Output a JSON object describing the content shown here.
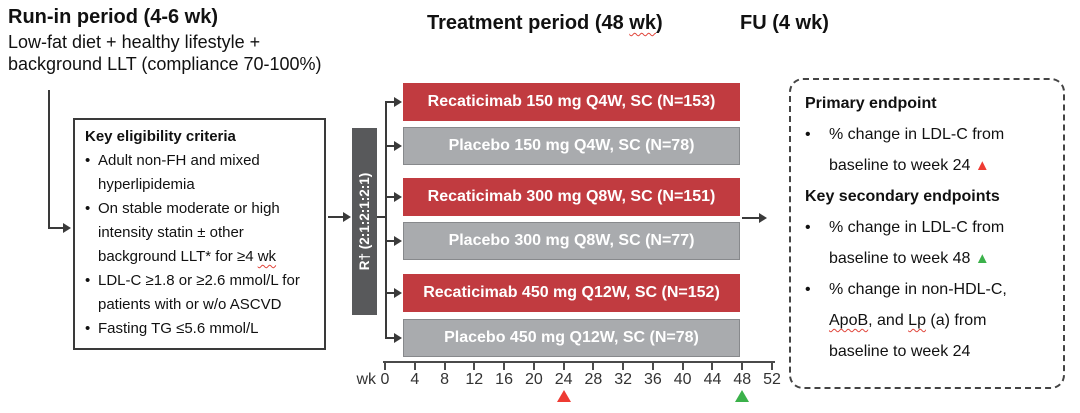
{
  "colors": {
    "active_bar": "#C13B40",
    "placebo_bar": "#A9ABAE",
    "randomization_bar": "#58595B",
    "marker_red": "#EE3B33",
    "marker_green": "#3BB14A"
  },
  "headers": {
    "runin_title": "Run-in period (4-6 wk)",
    "runin_sub1": "Low-fat diet + healthy lifestyle +",
    "runin_sub2": "background LLT (compliance 70-100%)",
    "treatment_title": [
      {
        "t": "Treatment period (48 "
      },
      {
        "t": "wk",
        "c": "sq"
      },
      {
        "t": ")"
      }
    ],
    "fu_title": "FU (4 wk)"
  },
  "eligibility": {
    "title": "Key eligibility criteria",
    "items": [
      [
        {
          "t": "Adult non-FH and mixed hyperlipidemia"
        }
      ],
      [
        {
          "t": "On stable moderate or high intensity statin ± other background LLT* for ≥4 "
        },
        {
          "t": "wk",
          "c": "sq"
        }
      ],
      [
        {
          "t": "LDL-C ≥1.8 or ≥2.6 mmol/L for patients with or w/o ASCVD"
        }
      ],
      [
        {
          "t": "Fasting TG ≤5.6 mmol/L"
        }
      ]
    ]
  },
  "randomization": {
    "label": "R† (2:1:2:1:2:1)"
  },
  "arms": [
    {
      "label": "Recaticimab 150 mg Q4W, SC (N=153)",
      "type": "active"
    },
    {
      "label": "Placebo 150 mg Q4W, SC (N=78)",
      "type": "placebo"
    },
    {
      "label": "Recaticimab 300 mg Q8W, SC (N=151)",
      "type": "active"
    },
    {
      "label": "Placebo 300 mg Q8W, SC (N=77)",
      "type": "placebo"
    },
    {
      "label": "Recaticimab 450 mg Q12W, SC (N=152)",
      "type": "active"
    },
    {
      "label": "Placebo 450 mg Q12W, SC (N=78)",
      "type": "placebo"
    }
  ],
  "axis": {
    "unit_label": "wk",
    "ticks": [
      "0",
      "4",
      "8",
      "12",
      "16",
      "20",
      "24",
      "28",
      "32",
      "36",
      "40",
      "44",
      "48",
      "52"
    ],
    "markers": [
      {
        "at": "24",
        "color": "red"
      },
      {
        "at": "48",
        "color": "green"
      }
    ]
  },
  "endpoints": {
    "primary_title": "Primary endpoint",
    "primary_items": [
      [
        {
          "t": "% change in LDL-C from baseline to week 24 "
        },
        {
          "t": "▲",
          "c": "tri-red"
        }
      ]
    ],
    "secondary_title": "Key secondary endpoints",
    "secondary_items": [
      [
        {
          "t": "% change in LDL-C from baseline to week 48 "
        },
        {
          "t": "▲",
          "c": "tri-green"
        }
      ],
      [
        {
          "t": "% change in non-HDL-C, "
        },
        {
          "t": "ApoB",
          "c": "sq"
        },
        {
          "t": ", and "
        },
        {
          "t": "Lp",
          "c": "sq"
        },
        {
          "t": " (a) from baseline to week 24"
        }
      ]
    ]
  }
}
